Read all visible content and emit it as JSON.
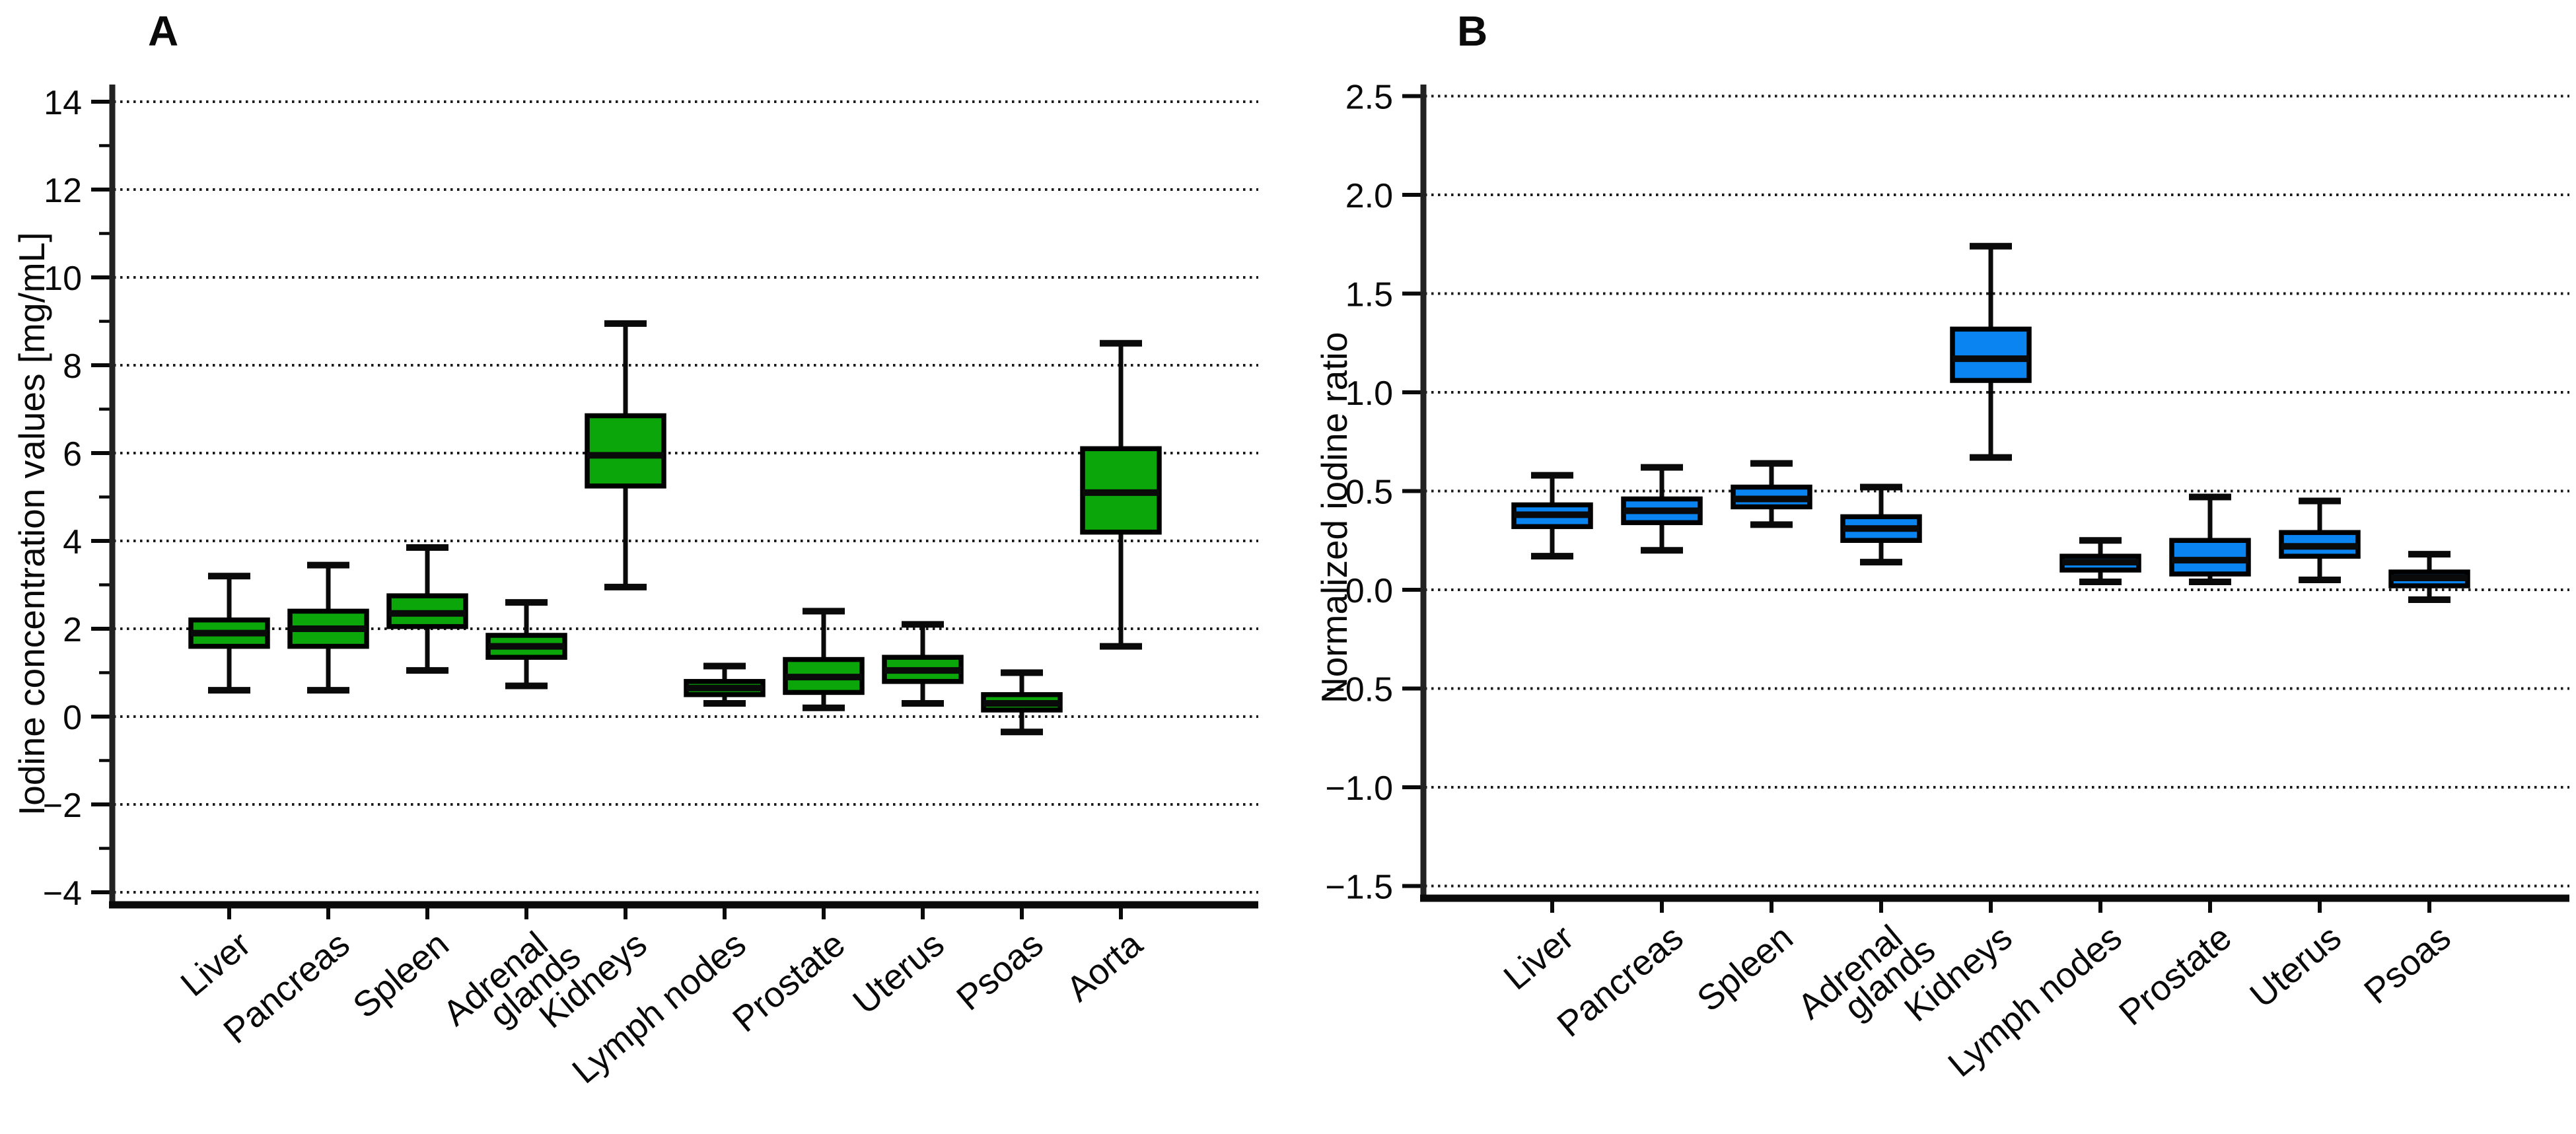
{
  "figure": {
    "background": "#ffffff",
    "panel_a_title": "A",
    "panel_b_title": "B"
  },
  "chart_data": [
    {
      "type": "box",
      "panel_label": "A",
      "ylabel": "Iodine concentration values [mg/mL]",
      "box_fill": "#0AA60A",
      "box_edge": "#000000",
      "grid": "dotted-horizontal-major",
      "legend": "none",
      "ylim": [
        -4.3,
        14.4
      ],
      "yticks": [
        14,
        12,
        10,
        8,
        6,
        4,
        2,
        0,
        -2,
        -4
      ],
      "ytick_labels": [
        "14",
        "12",
        "10",
        "8",
        "6",
        "4",
        "2",
        "0",
        "−2",
        "−4"
      ],
      "yticks_minor": [
        13,
        11,
        9,
        7,
        5,
        3,
        1,
        -1,
        -3
      ],
      "categories": [
        "Liver",
        "Pancreas",
        "Spleen",
        "Adrenal\nglands",
        "Kidneys",
        "Lymph nodes",
        "Prostate",
        "Uterus",
        "Psoas",
        "Aorta"
      ],
      "series": [
        {
          "organ": "Liver",
          "low": 0.6,
          "q1": 1.6,
          "median": 1.9,
          "q3": 2.2,
          "high": 3.2
        },
        {
          "organ": "Pancreas",
          "low": 0.6,
          "q1": 1.6,
          "median": 2.0,
          "q3": 2.4,
          "high": 3.45
        },
        {
          "organ": "Spleen",
          "low": 1.05,
          "q1": 2.05,
          "median": 2.35,
          "q3": 2.75,
          "high": 3.85
        },
        {
          "organ": "Adrenal glands",
          "low": 0.7,
          "q1": 1.35,
          "median": 1.6,
          "q3": 1.85,
          "high": 2.6
        },
        {
          "organ": "Kidneys",
          "low": 2.95,
          "q1": 5.25,
          "median": 5.95,
          "q3": 6.85,
          "high": 8.95
        },
        {
          "organ": "Lymph nodes",
          "low": 0.3,
          "q1": 0.5,
          "median": 0.65,
          "q3": 0.8,
          "high": 1.15
        },
        {
          "organ": "Prostate",
          "low": 0.2,
          "q1": 0.55,
          "median": 0.9,
          "q3": 1.3,
          "high": 2.4
        },
        {
          "organ": "Uterus",
          "low": 0.3,
          "q1": 0.8,
          "median": 1.05,
          "q3": 1.35,
          "high": 2.1
        },
        {
          "organ": "Psoas",
          "low": -0.35,
          "q1": 0.15,
          "median": 0.3,
          "q3": 0.5,
          "high": 1.0
        },
        {
          "organ": "Aorta",
          "low": 1.6,
          "q1": 4.2,
          "median": 5.1,
          "q3": 6.1,
          "high": 8.5
        }
      ]
    },
    {
      "type": "box",
      "panel_label": "B",
      "ylabel": "Normalized iodine ratio",
      "box_fill": "#0A84F0",
      "box_edge": "#000000",
      "grid": "dotted-horizontal-major",
      "legend": "none",
      "ylim": [
        -1.56,
        2.55
      ],
      "yticks": [
        2.5,
        2.0,
        1.5,
        1.0,
        0.5,
        0.0,
        -0.5,
        -1.0,
        -1.5
      ],
      "ytick_labels": [
        "2.5",
        "2.0",
        "1.5",
        "1.0",
        "0.5",
        "0.0",
        "−0.5",
        "−1.0",
        "−1.5"
      ],
      "yticks_minor": [],
      "categories": [
        "Liver",
        "Pancreas",
        "Spleen",
        "Adrenal\nglands",
        "Kidneys",
        "Lymph nodes",
        "Prostate",
        "Uterus",
        "Psoas"
      ],
      "series": [
        {
          "organ": "Liver",
          "low": 0.17,
          "q1": 0.32,
          "median": 0.38,
          "q3": 0.43,
          "high": 0.58
        },
        {
          "organ": "Pancreas",
          "low": 0.2,
          "q1": 0.34,
          "median": 0.4,
          "q3": 0.46,
          "high": 0.62
        },
        {
          "organ": "Spleen",
          "low": 0.33,
          "q1": 0.42,
          "median": 0.46,
          "q3": 0.52,
          "high": 0.64
        },
        {
          "organ": "Adrenal glands",
          "low": 0.14,
          "q1": 0.25,
          "median": 0.31,
          "q3": 0.37,
          "high": 0.52
        },
        {
          "organ": "Kidneys",
          "low": 0.67,
          "q1": 1.06,
          "median": 1.17,
          "q3": 1.32,
          "high": 1.74
        },
        {
          "organ": "Lymph nodes",
          "low": 0.04,
          "q1": 0.1,
          "median": 0.14,
          "q3": 0.17,
          "high": 0.25
        },
        {
          "organ": "Prostate",
          "low": 0.04,
          "q1": 0.08,
          "median": 0.15,
          "q3": 0.25,
          "high": 0.47
        },
        {
          "organ": "Uterus",
          "low": 0.05,
          "q1": 0.17,
          "median": 0.22,
          "q3": 0.29,
          "high": 0.45
        },
        {
          "organ": "Psoas",
          "low": -0.05,
          "q1": 0.02,
          "median": 0.06,
          "q3": 0.09,
          "high": 0.18
        }
      ]
    }
  ]
}
